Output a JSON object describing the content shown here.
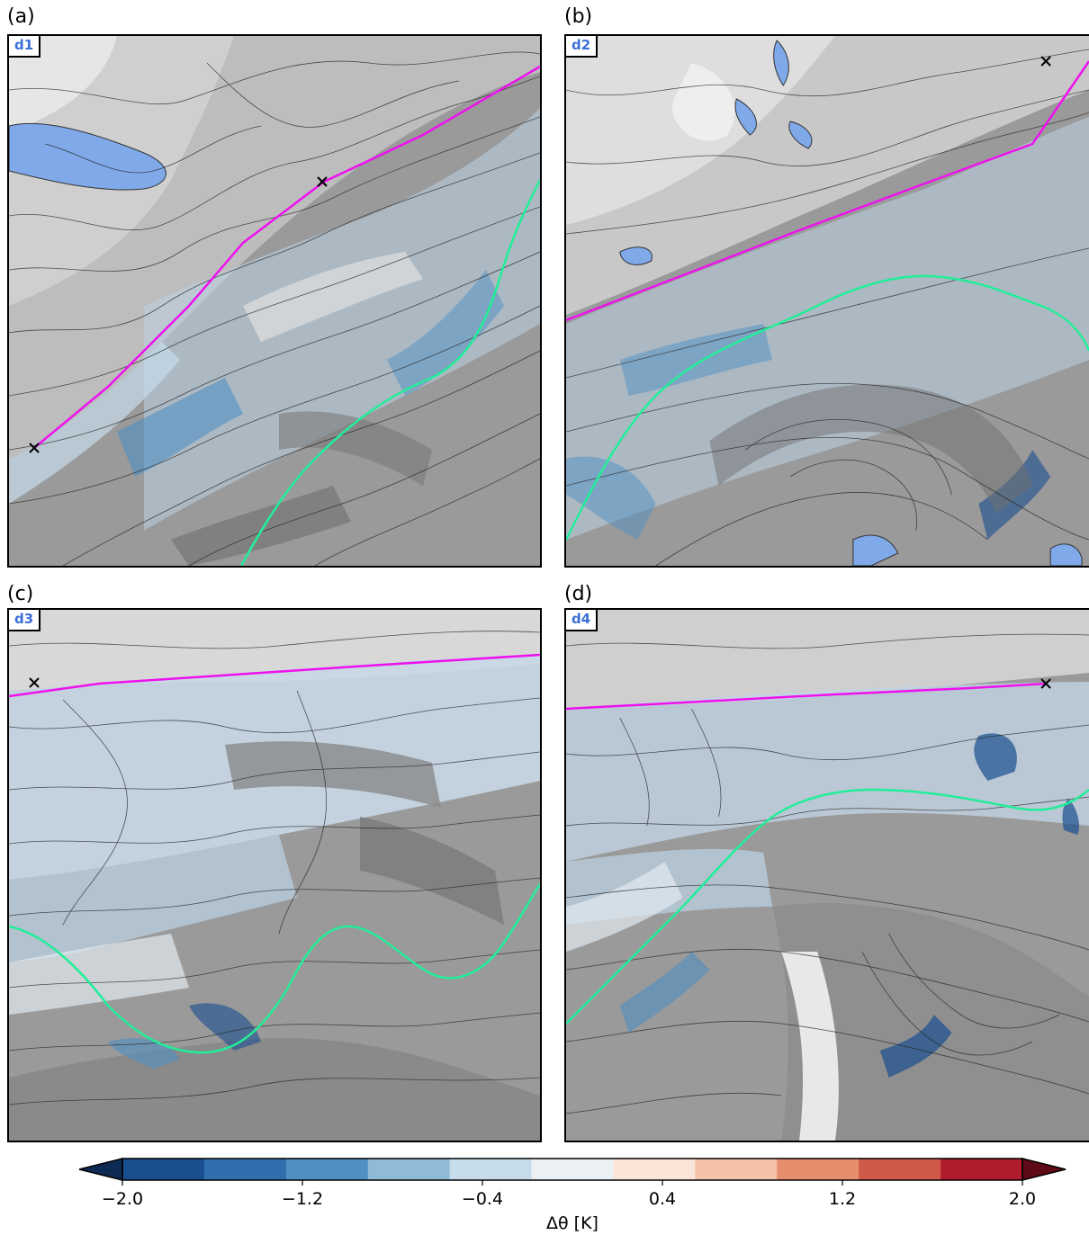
{
  "panels": [
    {
      "label": "(a)",
      "domain": "d1"
    },
    {
      "label": "(b)",
      "domain": "d2"
    },
    {
      "label": "(c)",
      "domain": "d3"
    },
    {
      "label": "(d)",
      "domain": "d4"
    }
  ],
  "colorbar": {
    "label": "Δθ [K]",
    "ticks": [
      "−2.0",
      "−1.2",
      "−0.4",
      "0.4",
      "1.2",
      "2.0"
    ],
    "colors": [
      "#1a4f8f",
      "#2f6ead",
      "#4f8fc3",
      "#8fbad8",
      "#c6dcea",
      "#eaf0f4",
      "#fbe4d8",
      "#f4c2a8",
      "#e58e6e",
      "#cf5a4a",
      "#b01c2e"
    ],
    "under_color": "#0d2a52",
    "over_color": "#5e0a17"
  },
  "styles": {
    "transect_color": "#ee11ee",
    "ridge_line_color": "#22ee99",
    "lake_color": "#7fa9e8"
  }
}
